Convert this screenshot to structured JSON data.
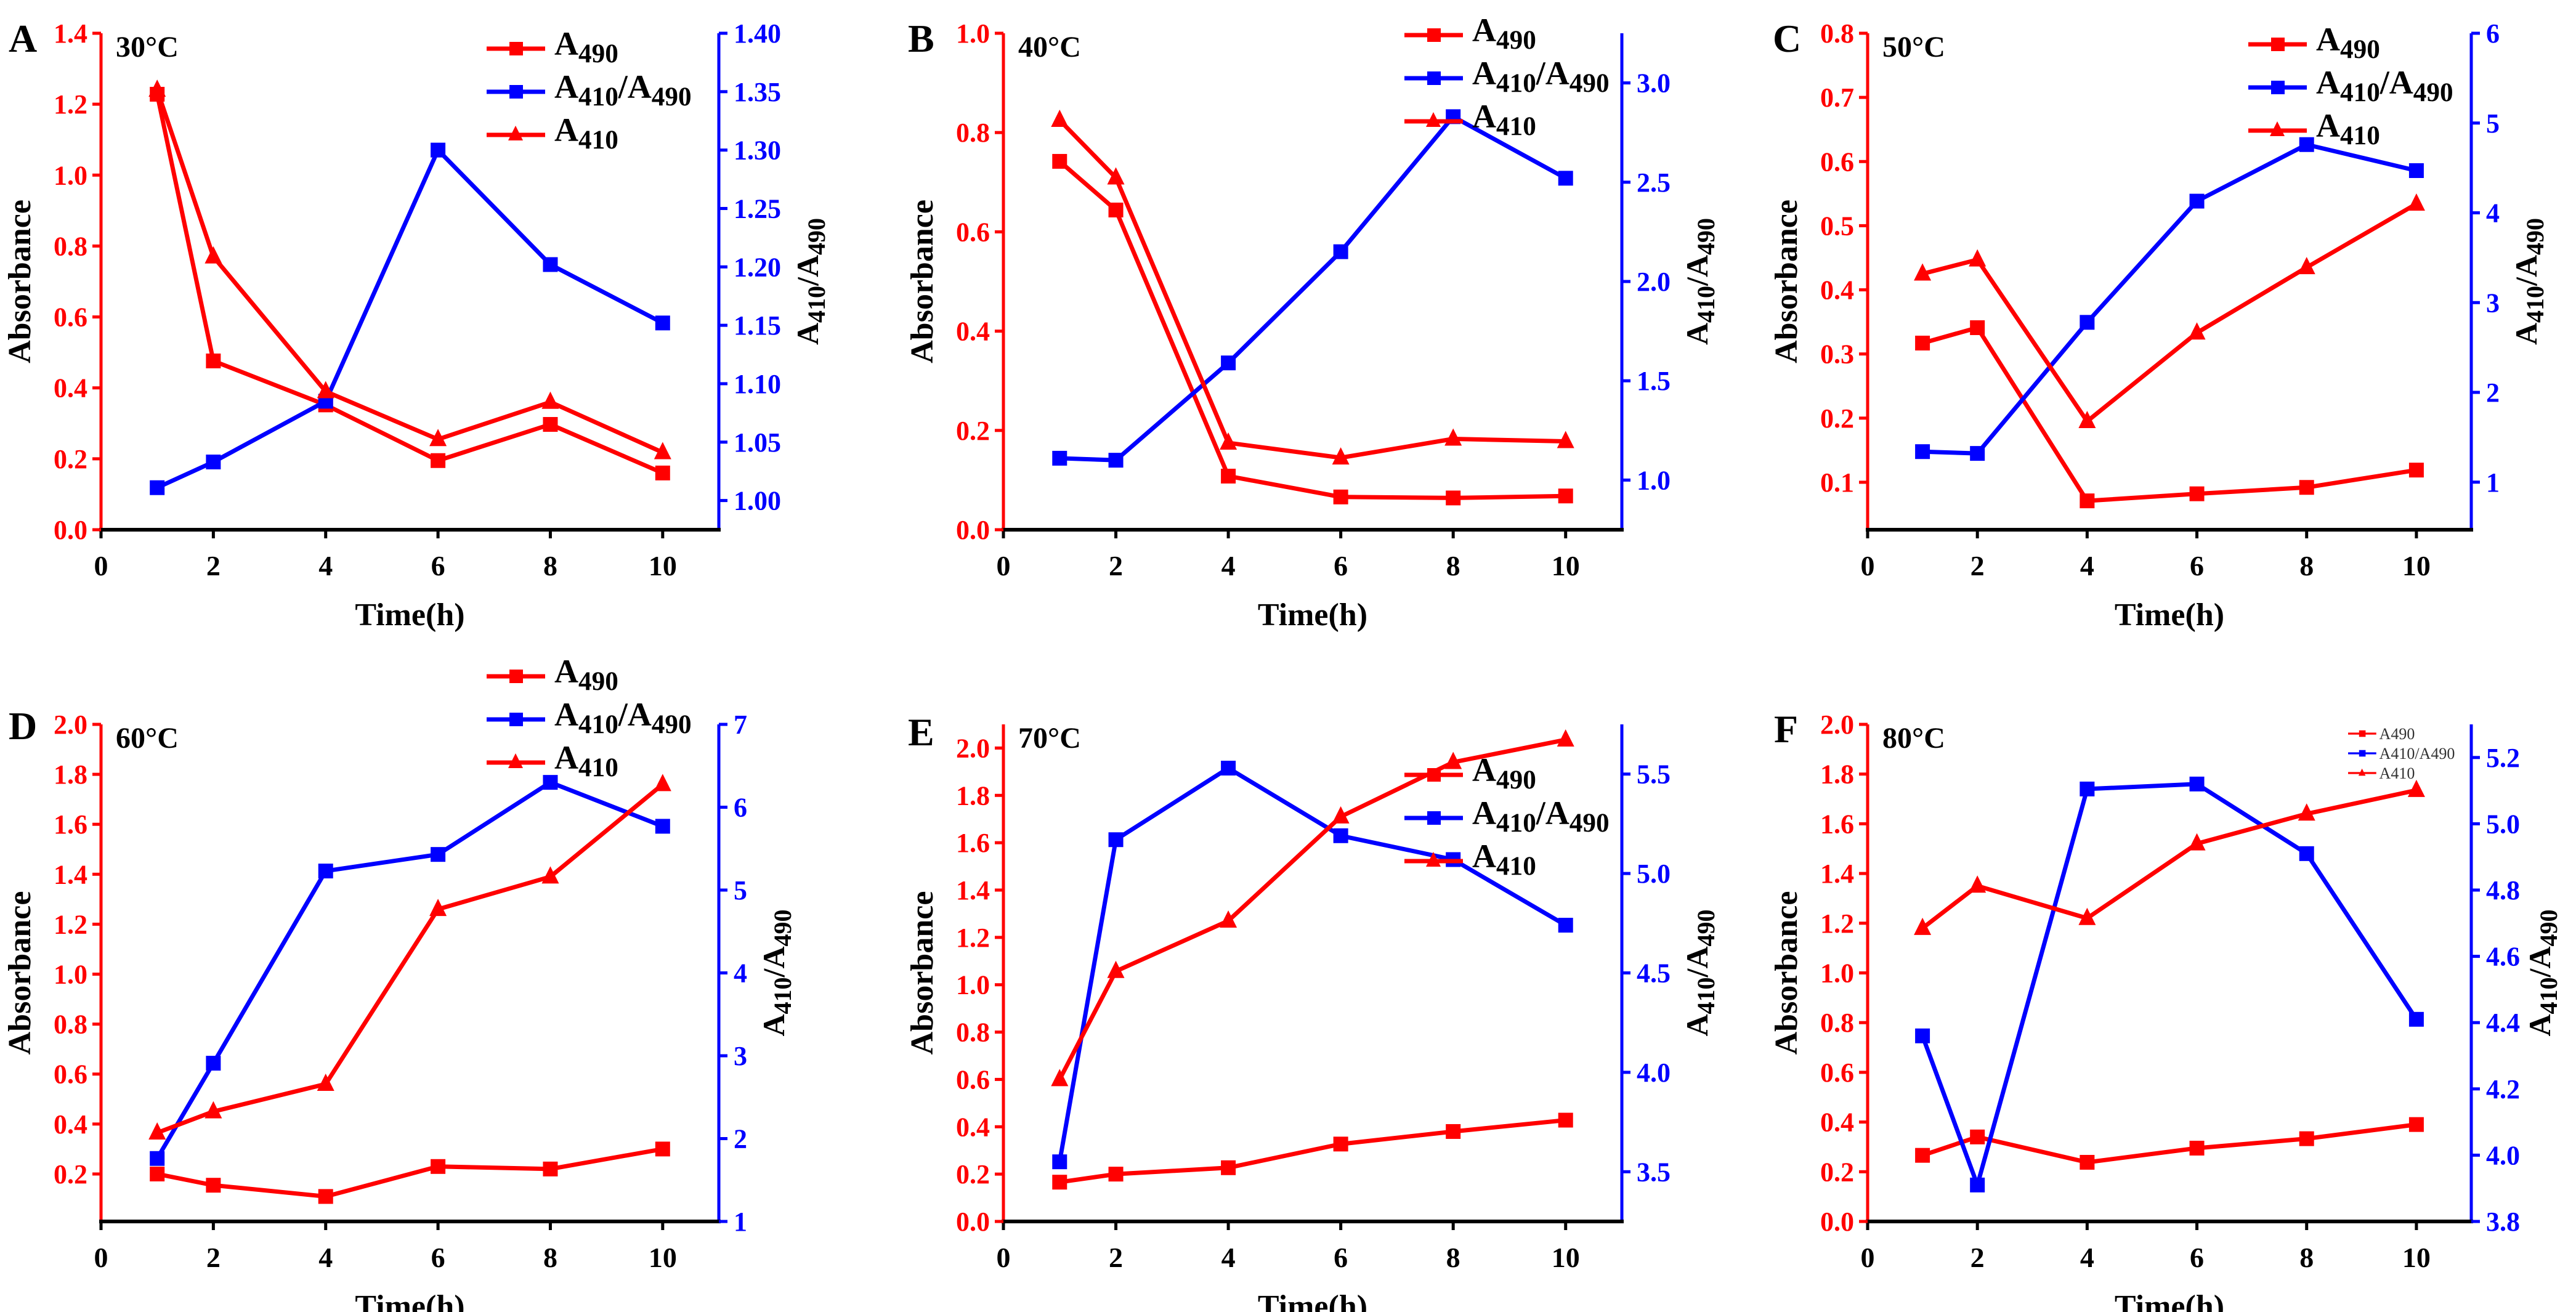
{
  "colors": {
    "red": "#ff0000",
    "blue": "#0000ff",
    "axis": "#000000"
  },
  "chart_data": [
    {
      "type": "line",
      "panel_label": "A",
      "title": "30°C",
      "xlabel": "Time(h)",
      "ylabel": "Absorbance",
      "y2label": "A410/A490",
      "x": [
        1,
        2,
        4,
        6,
        8,
        10
      ],
      "xlim": [
        0,
        11
      ],
      "xticks": [
        "0",
        "2",
        "4",
        "6",
        "8",
        "10"
      ],
      "ylim": [
        0,
        1.4
      ],
      "yticks": [
        "0.0",
        "0.2",
        "0.4",
        "0.6",
        "0.8",
        "1.0",
        "1.2",
        "1.4"
      ],
      "y2lim": [
        0.975,
        1.4
      ],
      "y2ticks": [
        "1.00",
        "1.05",
        "1.10",
        "1.15",
        "1.20",
        "1.25",
        "1.30",
        "1.35",
        "1.40"
      ],
      "legend": "top-right",
      "series": [
        {
          "name": "A490",
          "axis": "left",
          "marker": "square",
          "color": "#ff0000",
          "values": [
            1.228,
            0.476,
            0.352,
            0.195,
            0.297,
            0.16
          ]
        },
        {
          "name": "A410/A490",
          "axis": "right",
          "marker": "square",
          "color": "#0000ff",
          "values": [
            1.011,
            1.033,
            1.085,
            1.3,
            1.202,
            1.152
          ]
        },
        {
          "name": "A410",
          "axis": "left",
          "marker": "triangle",
          "color": "#ff0000",
          "values": [
            1.24,
            0.77,
            0.39,
            0.255,
            0.36,
            0.218
          ]
        }
      ]
    },
    {
      "type": "line",
      "panel_label": "B",
      "title": "40°C",
      "xlabel": "Time(h)",
      "ylabel": "Absorbance",
      "y2label": "A410/A490",
      "x": [
        1,
        2,
        4,
        6,
        8,
        10
      ],
      "xlim": [
        0,
        11
      ],
      "xticks": [
        "0",
        "2",
        "4",
        "6",
        "8",
        "10"
      ],
      "ylim": [
        0,
        1.0
      ],
      "yticks": [
        "0.0",
        "0.2",
        "0.4",
        "0.6",
        "0.8",
        "1.0"
      ],
      "y2lim": [
        0.75,
        3.25
      ],
      "y2ticks": [
        "1.0",
        "1.5",
        "2.0",
        "2.5",
        "3.0"
      ],
      "legend": "top-right",
      "series": [
        {
          "name": "A490",
          "axis": "left",
          "marker": "square",
          "color": "#ff0000",
          "values": [
            0.742,
            0.644,
            0.108,
            0.066,
            0.064,
            0.068
          ]
        },
        {
          "name": "A410/A490",
          "axis": "right",
          "marker": "square",
          "color": "#0000ff",
          "values": [
            1.11,
            1.1,
            1.59,
            2.15,
            2.83,
            2.52
          ]
        },
        {
          "name": "A410",
          "axis": "left",
          "marker": "triangle",
          "color": "#ff0000",
          "values": [
            0.825,
            0.709,
            0.175,
            0.145,
            0.183,
            0.178
          ]
        }
      ]
    },
    {
      "type": "line",
      "panel_label": "C",
      "title": "50°C",
      "xlabel": "Time(h)",
      "ylabel": "Absorbance",
      "y2label": "A410/A490",
      "x": [
        1,
        2,
        4,
        6,
        8,
        10
      ],
      "xlim": [
        0,
        11
      ],
      "xticks": [
        "0",
        "2",
        "4",
        "6",
        "8",
        "10"
      ],
      "ylim": [
        0.026,
        0.8
      ],
      "yticks": [
        "0.1",
        "0.2",
        "0.3",
        "0.4",
        "0.5",
        "0.6",
        "0.7",
        "0.8"
      ],
      "y2lim": [
        0.47,
        6
      ],
      "y2ticks": [
        "1",
        "2",
        "3",
        "4",
        "5",
        "6"
      ],
      "legend": "top-right",
      "series": [
        {
          "name": "A490",
          "axis": "left",
          "marker": "square",
          "color": "#ff0000",
          "values": [
            0.317,
            0.341,
            0.071,
            0.082,
            0.092,
            0.119
          ]
        },
        {
          "name": "A410/A490",
          "axis": "right",
          "marker": "square",
          "color": "#0000ff",
          "values": [
            1.34,
            1.32,
            2.78,
            4.13,
            4.76,
            4.47
          ]
        },
        {
          "name": "A410",
          "axis": "left",
          "marker": "triangle",
          "color": "#ff0000",
          "values": [
            0.425,
            0.447,
            0.195,
            0.333,
            0.435,
            0.534
          ]
        }
      ]
    },
    {
      "type": "line",
      "panel_label": "D",
      "title": "60°C",
      "xlabel": "Time(h)",
      "ylabel": "Absorbance",
      "y2label": "A410/A490",
      "x": [
        1,
        2,
        4,
        6,
        8,
        10
      ],
      "xlim": [
        0,
        11
      ],
      "xticks": [
        "0",
        "2",
        "4",
        "6",
        "8",
        "10"
      ],
      "ylim": [
        0.01,
        2.0
      ],
      "yticks": [
        "0.2",
        "0.4",
        "0.6",
        "0.8",
        "1.0",
        "1.2",
        "1.4",
        "1.6",
        "1.8",
        "2.0"
      ],
      "y2lim": [
        1,
        7
      ],
      "y2ticks": [
        "1",
        "2",
        "3",
        "4",
        "5",
        "6",
        "7"
      ],
      "legend": "top-right",
      "series": [
        {
          "name": "A490",
          "axis": "left",
          "marker": "square",
          "color": "#ff0000",
          "values": [
            0.2,
            0.155,
            0.11,
            0.23,
            0.22,
            0.3
          ]
        },
        {
          "name": "A410/A490",
          "axis": "right",
          "marker": "square",
          "color": "#0000ff",
          "values": [
            1.76,
            2.91,
            5.23,
            5.43,
            6.3,
            5.77
          ]
        },
        {
          "name": "A410",
          "axis": "left",
          "marker": "triangle",
          "color": "#ff0000",
          "values": [
            0.365,
            0.45,
            0.56,
            1.26,
            1.39,
            1.76
          ]
        }
      ]
    },
    {
      "type": "line",
      "panel_label": "E",
      "title": "70°C",
      "xlabel": "Time(h)",
      "ylabel": "Absorbance",
      "y2label": "A410/A490",
      "x": [
        1,
        2,
        4,
        6,
        8,
        10
      ],
      "xlim": [
        0,
        11
      ],
      "xticks": [
        "0",
        "2",
        "4",
        "6",
        "8",
        "10"
      ],
      "ylim": [
        0,
        2.1
      ],
      "yticks": [
        "0.0",
        "0.2",
        "0.4",
        "0.6",
        "0.8",
        "1.0",
        "1.2",
        "1.4",
        "1.6",
        "1.8",
        "2.0"
      ],
      "y2lim": [
        3.25,
        5.75
      ],
      "y2ticks": [
        "3.5",
        "4.0",
        "4.5",
        "5.0",
        "5.5"
      ],
      "legend": "right",
      "series": [
        {
          "name": "A490",
          "axis": "left",
          "marker": "square",
          "color": "#ff0000",
          "values": [
            0.166,
            0.2,
            0.227,
            0.327,
            0.38,
            0.428
          ]
        },
        {
          "name": "A410/A490",
          "axis": "right",
          "marker": "square",
          "color": "#0000ff",
          "values": [
            3.55,
            5.17,
            5.53,
            5.19,
            5.07,
            4.74
          ]
        },
        {
          "name": "A410",
          "axis": "left",
          "marker": "triangle",
          "color": "#ff0000",
          "values": [
            0.6,
            1.057,
            1.27,
            1.71,
            1.94,
            2.035
          ]
        }
      ]
    },
    {
      "type": "line",
      "panel_label": "F",
      "title": "80°C",
      "xlabel": "Time(h)",
      "ylabel": "Absorbance",
      "y2label": "A410/A490",
      "x": [
        1,
        2,
        4,
        6,
        8,
        10
      ],
      "xlim": [
        0,
        11
      ],
      "xticks": [
        "0",
        "2",
        "4",
        "6",
        "8",
        "10"
      ],
      "ylim": [
        0,
        2.0
      ],
      "yticks": [
        "0.0",
        "0.2",
        "0.4",
        "0.6",
        "0.8",
        "1.0",
        "1.2",
        "1.4",
        "1.6",
        "1.8",
        "2.0"
      ],
      "y2lim": [
        3.8,
        5.3
      ],
      "y2ticks": [
        "3.8",
        "4.0",
        "4.2",
        "4.4",
        "4.6",
        "4.8",
        "5.0",
        "5.2"
      ],
      "legend": "top-right",
      "series": [
        {
          "name": "A490",
          "axis": "left",
          "marker": "square",
          "color": "#ff0000",
          "values": [
            0.266,
            0.34,
            0.238,
            0.295,
            0.333,
            0.39
          ]
        },
        {
          "name": "A410/A490",
          "axis": "right",
          "marker": "square",
          "color": "#0000ff",
          "values": [
            4.36,
            3.91,
            5.105,
            5.12,
            4.91,
            4.41
          ]
        },
        {
          "name": "A410",
          "axis": "left",
          "marker": "triangle",
          "color": "#ff0000",
          "values": [
            1.18,
            1.35,
            1.22,
            1.52,
            1.64,
            1.735
          ]
        }
      ]
    }
  ]
}
